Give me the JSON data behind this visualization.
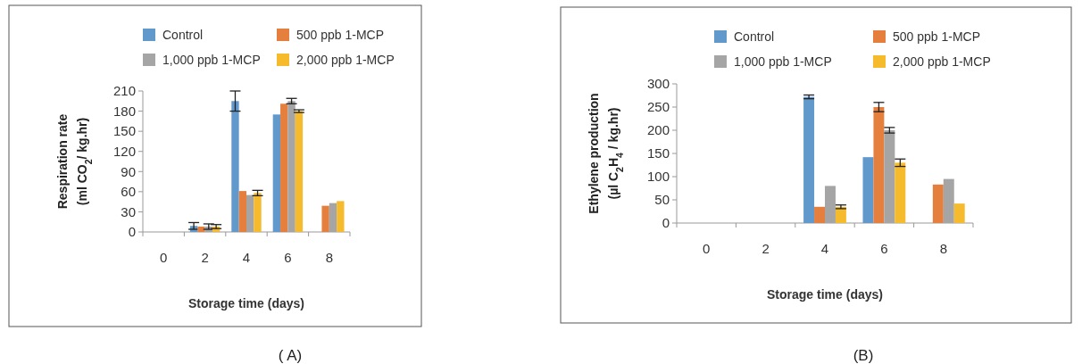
{
  "chart_data": [
    {
      "type": "bar",
      "categories": [
        "0",
        "2",
        "4",
        "6",
        "8"
      ],
      "xlabel": "Storage time (days)",
      "ylabel": "Respiration rate\n(ml CO$_{2}$/ kg.hr)",
      "ylim": [
        0,
        210
      ],
      "yticks": [
        0,
        30,
        60,
        90,
        120,
        150,
        180,
        210
      ],
      "grid": false,
      "legend": "top",
      "annotations": [
        "( A)"
      ],
      "series": [
        {
          "name": "Control",
          "color": "#6199cc",
          "values": [
            null,
            9,
            195,
            175,
            null
          ],
          "errors": [
            null,
            5,
            15,
            null,
            null
          ]
        },
        {
          "name": "500 ppb 1-MCP",
          "color": "#e47f3e",
          "values": [
            null,
            8,
            61,
            191,
            39
          ]
        },
        {
          "name": "1,000 ppb 1-MCP",
          "color": "#a5a5a5",
          "values": [
            null,
            8,
            55,
            195,
            43
          ],
          "errors": [
            null,
            4,
            null,
            4,
            null
          ]
        },
        {
          "name": "2,000 ppb 1-MCP",
          "color": "#f5bb2c",
          "values": [
            null,
            8,
            58,
            180,
            46
          ],
          "errors": [
            null,
            3,
            4,
            2,
            null
          ]
        }
      ]
    },
    {
      "type": "bar",
      "categories": [
        "0",
        "2",
        "4",
        "6",
        "8"
      ],
      "xlabel": "Storage time (days)",
      "ylabel": "Ethylene production\n(µl C$_{2}$H$_{4}$ / kg.hr)",
      "ylim": [
        0,
        300
      ],
      "yticks": [
        0,
        50,
        100,
        150,
        200,
        250,
        300
      ],
      "grid": false,
      "legend": "top",
      "annotations": [
        "(B)"
      ],
      "series": [
        {
          "name": "Control",
          "color": "#6199cc",
          "values": [
            null,
            null,
            272,
            142,
            null
          ],
          "errors": [
            null,
            null,
            4,
            null,
            null
          ]
        },
        {
          "name": "500 ppb 1-MCP",
          "color": "#e47f3e",
          "values": [
            null,
            null,
            35,
            250,
            83
          ],
          "errors": [
            null,
            null,
            null,
            10,
            null
          ]
        },
        {
          "name": "1,000 ppb 1-MCP",
          "color": "#a5a5a5",
          "values": [
            null,
            null,
            80,
            200,
            95
          ],
          "errors": [
            null,
            null,
            null,
            6,
            null
          ]
        },
        {
          "name": "2,000 ppb 1-MCP",
          "color": "#f5bb2c",
          "values": [
            null,
            null,
            35,
            130,
            42
          ],
          "errors": [
            null,
            null,
            4,
            8,
            null
          ]
        }
      ]
    }
  ]
}
